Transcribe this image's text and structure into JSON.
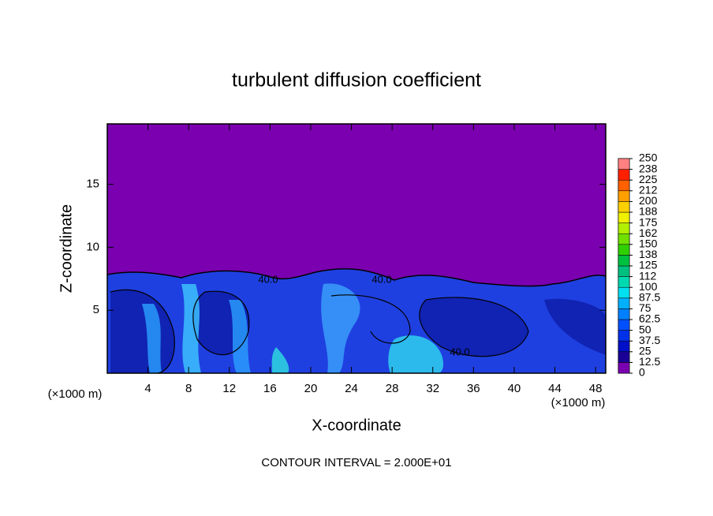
{
  "chart_data": {
    "type": "contour",
    "title": "turbulent diffusion coefficient",
    "x_label": "X-coordinate",
    "y_label": "Z-coordinate",
    "x_unit": "(×1000 m)",
    "y_unit": "(×1000 m)",
    "xlim": [
      0,
      49
    ],
    "xticks": [
      4,
      8,
      12,
      16,
      20,
      24,
      28,
      32,
      36,
      40,
      44,
      48
    ],
    "ylim": [
      0,
      19.8
    ],
    "yticks": [
      5,
      10,
      15
    ],
    "levels": [
      0,
      12.5,
      25,
      37.5,
      50,
      62.5,
      75,
      87.5,
      100,
      {
        "value": 112.5,
        "label": "112"
      },
      125,
      {
        "value": 137.5,
        "label": "138"
      },
      150,
      {
        "value": 162.5,
        "label": "162"
      },
      175,
      {
        "value": 187.5,
        "label": "188"
      },
      200,
      {
        "value": 212.5,
        "label": "212"
      },
      225,
      {
        "value": 237.5,
        "label": "238"
      },
      250
    ],
    "colors": [
      "#7a00b0",
      "#1a0096",
      "#0010c8",
      "#0030e8",
      "#0050ff",
      "#0080ff",
      "#00b0ff",
      "#00e0f0",
      "#00d8b0",
      "#00c080",
      "#00c040",
      "#30d000",
      "#70e000",
      "#b0f000",
      "#f0f000",
      "#ffd000",
      "#ffa000",
      "#ff6000",
      "#ff2000",
      "#ff8080"
    ],
    "contour_labels": [
      "40.0",
      "40.0",
      "40.0"
    ],
    "note": "CONTOUR INTERVAL = 2.000E+01"
  }
}
